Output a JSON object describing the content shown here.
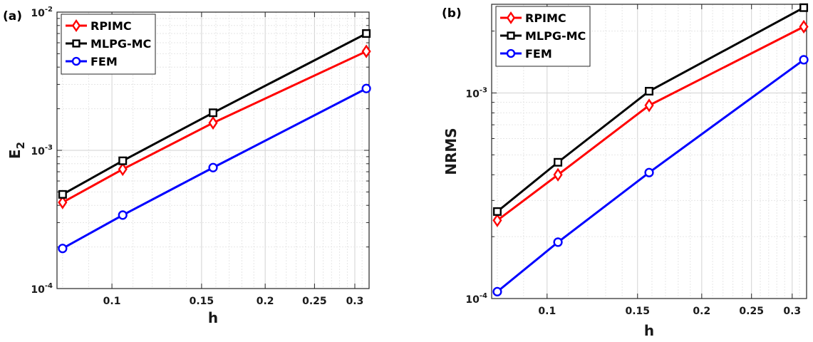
{
  "chart_data": [
    {
      "type": "line",
      "panel_label": "(a)",
      "xlabel": "h",
      "ylabel_base": "E",
      "ylabel_sub": "2",
      "xscale": "log",
      "yscale": "log",
      "xlim": [
        0.078,
        0.32
      ],
      "ylim": [
        0.0001,
        0.01
      ],
      "xticks": [
        {
          "value": 0.1,
          "label": "0.1"
        },
        {
          "value": 0.15,
          "label": "0.15"
        },
        {
          "value": 0.2,
          "label": "0.2"
        },
        {
          "value": 0.25,
          "label": "0.25"
        },
        {
          "value": 0.3,
          "label": "0.3"
        }
      ],
      "yticks": [
        {
          "value": 0.0001,
          "base": "10",
          "exp": "-4"
        },
        {
          "value": 0.001,
          "base": "10",
          "exp": "-3"
        },
        {
          "value": 0.01,
          "base": "10",
          "exp": "-2"
        }
      ],
      "grid": true,
      "legend_position": "top-left",
      "x": [
        0.08,
        0.105,
        0.158,
        0.316
      ],
      "series": [
        {
          "name": "RPIMC",
          "color": "#ff0000",
          "marker": "diamond",
          "values": [
            0.00042,
            0.00073,
            0.00158,
            0.0052
          ]
        },
        {
          "name": "MLPG-MC",
          "color": "#000000",
          "marker": "square",
          "values": [
            0.00048,
            0.00084,
            0.00187,
            0.007
          ]
        },
        {
          "name": "FEM",
          "color": "#0000ff",
          "marker": "circle",
          "values": [
            0.000195,
            0.00034,
            0.00075,
            0.0028
          ]
        }
      ]
    },
    {
      "type": "line",
      "panel_label": "(b)",
      "xlabel": "h",
      "ylabel_base": "NRMS",
      "ylabel_sub": "",
      "xscale": "log",
      "yscale": "log",
      "xlim": [
        0.078,
        0.32
      ],
      "ylim": [
        0.0001,
        0.0027
      ],
      "xticks": [
        {
          "value": 0.1,
          "label": "0.1"
        },
        {
          "value": 0.15,
          "label": "0.15"
        },
        {
          "value": 0.2,
          "label": "0.2"
        },
        {
          "value": 0.25,
          "label": "0.25"
        },
        {
          "value": 0.3,
          "label": "0.3"
        }
      ],
      "yticks": [
        {
          "value": 0.0001,
          "base": "10",
          "exp": "-4"
        },
        {
          "value": 0.001,
          "base": "10",
          "exp": "-3"
        }
      ],
      "grid": true,
      "legend_position": "top-left",
      "x": [
        0.08,
        0.105,
        0.158,
        0.316
      ],
      "series": [
        {
          "name": "RPIMC",
          "color": "#ff0000",
          "marker": "diamond",
          "values": [
            0.00024,
            0.0004,
            0.00087,
            0.0021
          ]
        },
        {
          "name": "MLPG-MC",
          "color": "#000000",
          "marker": "square",
          "values": [
            0.000265,
            0.00046,
            0.00102,
            0.0026
          ]
        },
        {
          "name": "FEM",
          "color": "#0000ff",
          "marker": "circle",
          "values": [
            0.000108,
            0.000188,
            0.00041,
            0.00145
          ]
        }
      ]
    }
  ]
}
